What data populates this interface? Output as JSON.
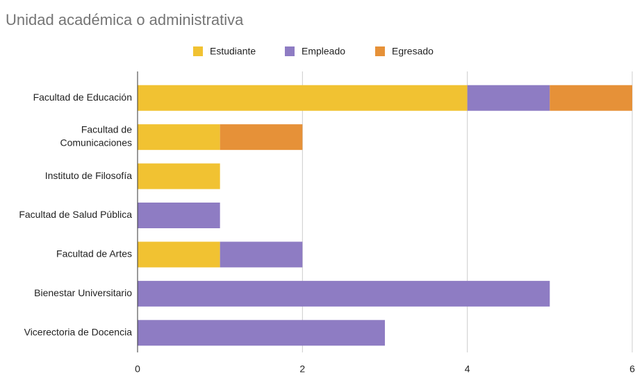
{
  "chart_data": {
    "type": "stacked_bar_horizontal",
    "title": "Unidad académica o administrativa",
    "categories": [
      "Facultad de Educación",
      "Facultad de Comunicaciones",
      "Instituto de Filosofía",
      "Facultad de Salud Pública",
      "Facultad de Artes",
      "Bienestar Universitario",
      "Vicerectoria de Docencia"
    ],
    "series": [
      {
        "name": "Estudiante",
        "color": "#f1c232",
        "values": [
          4,
          1,
          1,
          0,
          1,
          0,
          0
        ]
      },
      {
        "name": "Empleado",
        "color": "#8e7cc3",
        "values": [
          1,
          0,
          0,
          1,
          1,
          5,
          3
        ]
      },
      {
        "name": "Egresado",
        "color": "#e69138",
        "values": [
          1,
          1,
          0,
          0,
          0,
          0,
          0
        ]
      }
    ],
    "xlim": [
      0,
      6
    ],
    "xticks": [
      0,
      2,
      4,
      6
    ],
    "grid": true,
    "legend": "top"
  }
}
